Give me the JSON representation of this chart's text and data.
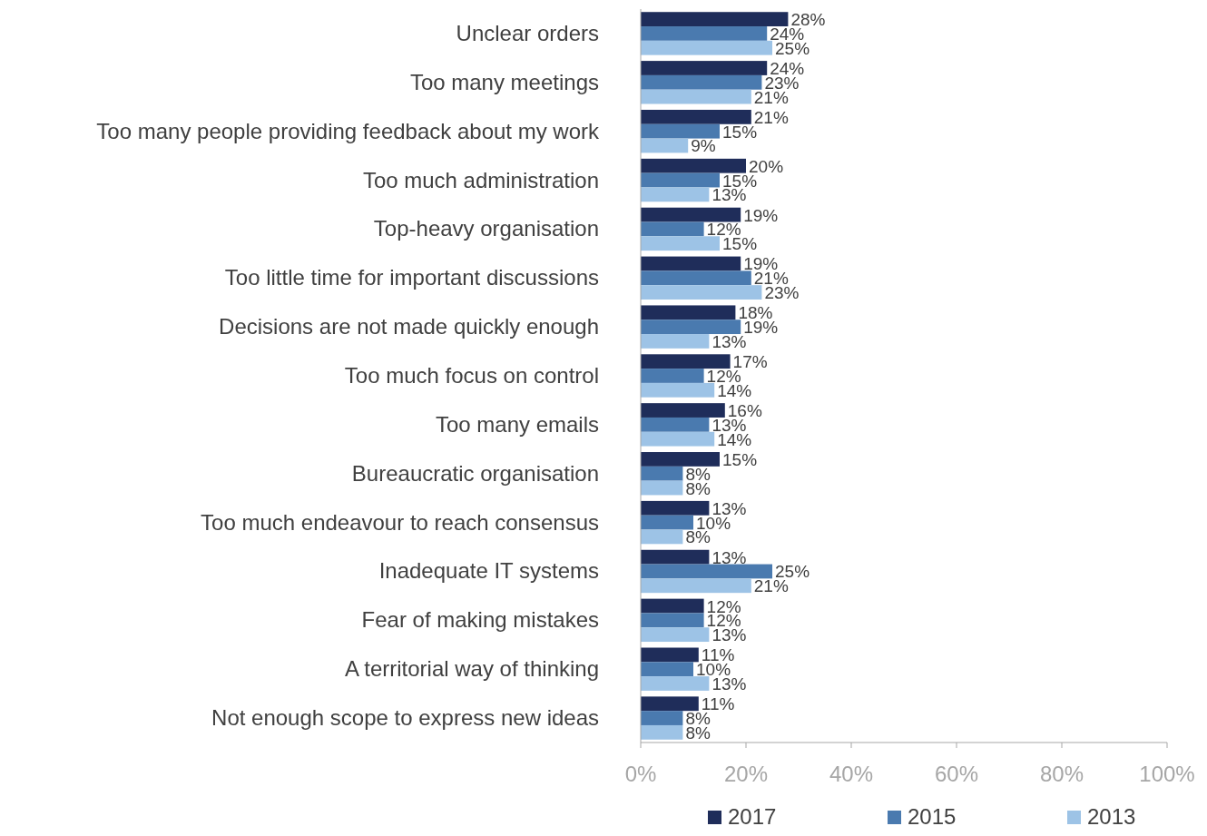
{
  "chart_data": {
    "type": "bar",
    "orientation": "horizontal",
    "categories": [
      "Unclear orders",
      "Too many meetings",
      "Too many people providing feedback about my work",
      "Too much administration",
      "Top-heavy organisation",
      "Too little time for important discussions",
      "Decisions are not made quickly enough",
      "Too much focus on control",
      "Too many emails",
      "Bureaucratic organisation",
      "Too much endeavour to reach consensus",
      "Inadequate IT systems",
      "Fear of making mistakes",
      "A territorial way of thinking",
      "Not enough scope to express new ideas"
    ],
    "series": [
      {
        "name": "2017",
        "color": "#1f2d5a",
        "values": [
          28,
          24,
          21,
          20,
          19,
          19,
          18,
          17,
          16,
          15,
          13,
          13,
          12,
          11,
          11
        ],
        "value_labels": [
          "28%",
          "24%",
          "21%",
          "20%",
          "19%",
          "19%",
          "18%",
          "17%",
          "16%",
          "15%",
          "13%",
          "13%",
          "12%",
          "11%",
          "11%"
        ]
      },
      {
        "name": "2015",
        "color": "#4a7aaf",
        "values": [
          24,
          23,
          15,
          15,
          12,
          21,
          19,
          12,
          13,
          8,
          10,
          25,
          12,
          10,
          8
        ],
        "value_labels": [
          "24%",
          "23%",
          "15%",
          "15%",
          "12%",
          "21%",
          "19%",
          "12%",
          "13%",
          "8%",
          "10%",
          "25%",
          "12%",
          "10%",
          "8%"
        ]
      },
      {
        "name": "2013",
        "color": "#9dc3e6",
        "values": [
          25,
          21,
          9,
          13,
          15,
          23,
          13,
          14,
          14,
          8,
          8,
          21,
          13,
          13,
          8
        ],
        "value_labels": [
          "25%",
          "21%",
          "9%",
          "13%",
          "15%",
          "23%",
          "13%",
          "14%",
          "14%",
          "8%",
          "8%",
          "21%",
          "13%",
          "13%",
          "8%"
        ]
      }
    ],
    "xlim": [
      0,
      100
    ],
    "xticks": [
      {
        "value": 0,
        "label": "0%"
      },
      {
        "value": 20,
        "label": "20%"
      },
      {
        "value": 40,
        "label": "40%"
      },
      {
        "value": 60,
        "label": "60%"
      },
      {
        "value": 80,
        "label": "80%"
      },
      {
        "value": 100,
        "label": "100%"
      }
    ],
    "grid": false,
    "legend": "bottom"
  }
}
